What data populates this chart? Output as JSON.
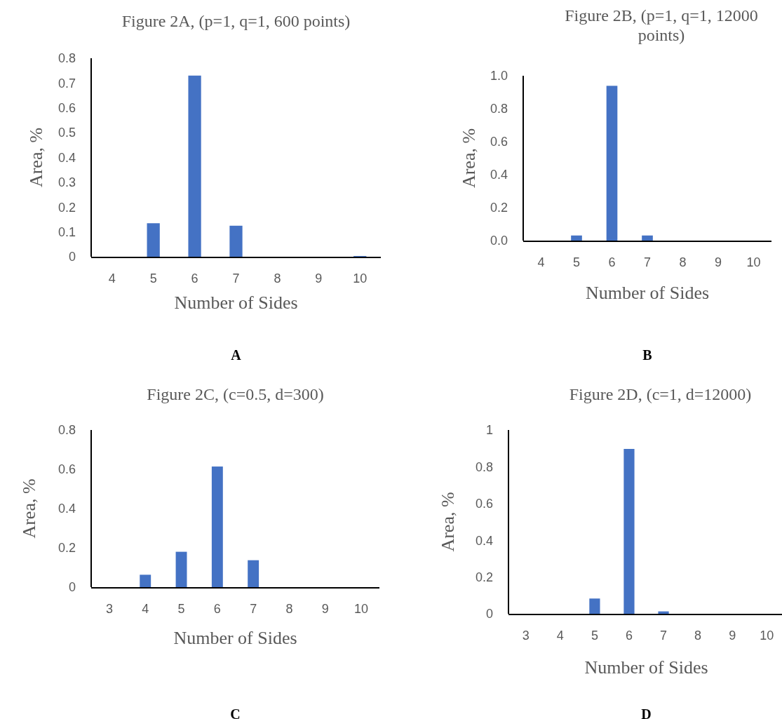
{
  "chart_data": [
    {
      "type": "bar",
      "title": "Figure 2A, (p=1, q=1, 600 points)",
      "xlabel": "Number of Sides",
      "ylabel": "Area, %",
      "categories": [
        "4",
        "5",
        "6",
        "7",
        "8",
        "9",
        "10"
      ],
      "values": [
        0,
        0.135,
        0.73,
        0.125,
        0,
        0,
        0.003
      ],
      "color": "#4472c4",
      "ylim": [
        0,
        0.8
      ],
      "yticks": [
        0,
        0.1,
        0.2,
        0.3,
        0.4,
        0.5,
        0.6,
        0.7,
        0.8
      ],
      "grid": false,
      "annotations": [
        "A"
      ]
    },
    {
      "type": "bar",
      "title": "Figure 2B, (p=1, q=1, 12000 points)",
      "xlabel": "Number of Sides",
      "ylabel": "Area, %",
      "categories": [
        "4",
        "5",
        "6",
        "7",
        "8",
        "9",
        "10"
      ],
      "values": [
        0,
        0.031,
        0.939,
        0.031,
        0,
        0,
        0
      ],
      "color": "#4472c4",
      "ylim": [
        0,
        1
      ],
      "yticks": [
        {
          "value": 0,
          "label": "0.0"
        },
        0.2,
        0.4,
        0.6,
        0.8,
        {
          "value": 1,
          "label": "1.0"
        }
      ],
      "grid": false,
      "annotations": [
        "B"
      ]
    },
    {
      "type": "bar",
      "title": "Figure 2C, (c=0.5, d=300)",
      "xlabel": "Number of Sides",
      "ylabel": "Area, %",
      "categories": [
        "3",
        "4",
        "5",
        "6",
        "7",
        "8",
        "9",
        "10"
      ],
      "values": [
        0,
        0.063,
        0.18,
        0.614,
        0.137,
        0,
        0,
        0
      ],
      "color": "#4472c4",
      "ylim": [
        0,
        0.8
      ],
      "yticks": [
        0,
        0.2,
        0.4,
        0.6,
        0.8
      ],
      "grid": false,
      "annotations": [
        "C"
      ]
    },
    {
      "type": "bar",
      "title": "Figure 2D, (c=1, d=12000)",
      "xlabel": "Number of Sides",
      "ylabel": "Area, %",
      "categories": [
        "3",
        "4",
        "5",
        "6",
        "7",
        "8",
        "9",
        "10"
      ],
      "values": [
        0,
        0,
        0.083,
        0.897,
        0.013,
        0,
        0,
        0
      ],
      "color": "#4472c4",
      "ylim": [
        0,
        1
      ],
      "yticks": [
        0,
        0.2,
        0.4,
        0.6,
        0.8,
        1
      ],
      "grid": false,
      "annotations": [
        "D"
      ]
    }
  ]
}
